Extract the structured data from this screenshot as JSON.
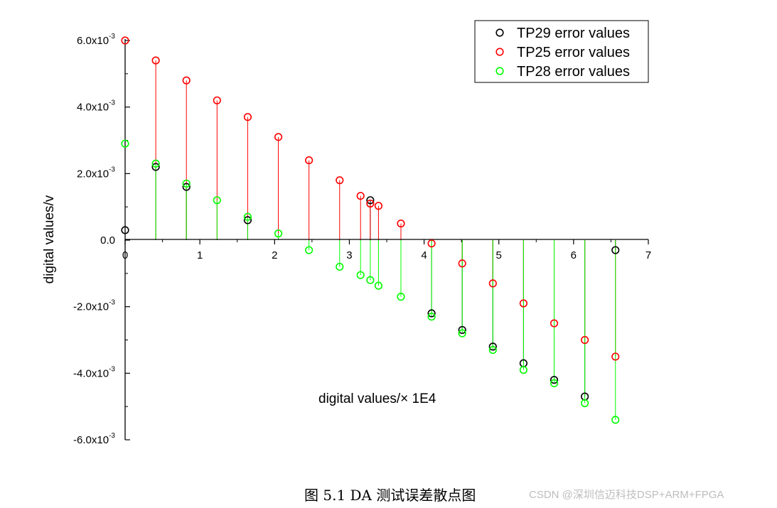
{
  "chart_data": {
    "type": "scatter",
    "xlabel": "digital values/× 1E4",
    "ylabel": "digital values/v",
    "xlim": [
      0,
      7
    ],
    "ylim": [
      -0.006,
      0.006
    ],
    "x_ticks": [
      {
        "value": 0,
        "label": "0"
      },
      {
        "value": 1,
        "label": "1"
      },
      {
        "value": 2,
        "label": "2"
      },
      {
        "value": 3,
        "label": "3"
      },
      {
        "value": 4,
        "label": "4"
      },
      {
        "value": 5,
        "label": "5"
      },
      {
        "value": 6,
        "label": "6"
      },
      {
        "value": 7,
        "label": "7"
      }
    ],
    "y_ticks": [
      {
        "value": 0.006,
        "mantissa": "6.0x10",
        "exp": "-3"
      },
      {
        "value": 0.004,
        "mantissa": "4.0x10",
        "exp": "-3"
      },
      {
        "value": 0.002,
        "mantissa": "2.0x10",
        "exp": "-3"
      },
      {
        "value": 0,
        "mantissa": "0.0",
        "exp": ""
      },
      {
        "value": -0.002,
        "mantissa": "-2.0x10",
        "exp": "-3"
      },
      {
        "value": -0.004,
        "mantissa": "-4.0x10",
        "exp": "-3"
      },
      {
        "value": -0.006,
        "mantissa": "-6.0x10",
        "exp": "-3"
      }
    ],
    "legend_position": "top-right",
    "drop_lines": true,
    "marker": "open-circle",
    "series": [
      {
        "name": "TP29 error values",
        "color": "#000000",
        "points": [
          [
            0,
            0.0003
          ],
          [
            0.41,
            0.0022
          ],
          [
            0.82,
            0.0016
          ],
          [
            1.64,
            0.0006
          ],
          [
            3.28,
            0.0012
          ],
          [
            4.1,
            -0.0022
          ],
          [
            4.51,
            -0.0027
          ],
          [
            4.92,
            -0.0032
          ],
          [
            5.33,
            -0.0037
          ],
          [
            5.74,
            -0.0042
          ],
          [
            6.15,
            -0.0047
          ],
          [
            6.56,
            -0.0003
          ]
        ]
      },
      {
        "name": "TP25 error values",
        "color": "#ff0000",
        "points": [
          [
            0,
            0.006
          ],
          [
            0.41,
            0.0054
          ],
          [
            0.82,
            0.0048
          ],
          [
            1.23,
            0.0042
          ],
          [
            1.64,
            0.0037
          ],
          [
            2.05,
            0.0031
          ],
          [
            2.46,
            0.0024
          ],
          [
            2.87,
            0.0018
          ],
          [
            3.15,
            0.00133
          ],
          [
            3.28,
            0.0011
          ],
          [
            3.39,
            0.00103
          ],
          [
            3.69,
            0.0005
          ],
          [
            4.1,
            -0.0001
          ],
          [
            4.51,
            -0.0007
          ],
          [
            4.92,
            -0.0013
          ],
          [
            5.33,
            -0.0019
          ],
          [
            5.74,
            -0.0025
          ],
          [
            6.15,
            -0.003
          ],
          [
            6.56,
            -0.0035
          ]
        ]
      },
      {
        "name": "TP28 error values",
        "color": "#00ff00",
        "points": [
          [
            0,
            0.0029
          ],
          [
            0.41,
            0.0023
          ],
          [
            0.82,
            0.0017
          ],
          [
            1.23,
            0.0012
          ],
          [
            1.64,
            0.0007
          ],
          [
            2.05,
            0.0002
          ],
          [
            2.46,
            -0.0003
          ],
          [
            2.87,
            -0.0008
          ],
          [
            3.15,
            -0.00105
          ],
          [
            3.28,
            -0.0012
          ],
          [
            3.39,
            -0.00137
          ],
          [
            3.69,
            -0.0017
          ],
          [
            4.1,
            -0.0023
          ],
          [
            4.51,
            -0.0028
          ],
          [
            4.92,
            -0.0033
          ],
          [
            5.33,
            -0.0039
          ],
          [
            5.74,
            -0.0043
          ],
          [
            6.15,
            -0.0049
          ],
          [
            6.56,
            -0.0054
          ]
        ]
      }
    ]
  },
  "caption": "图 5.1 DA 测试误差散点图",
  "watermark": "CSDN @深圳信迈科技DSP+ARM+FPGA"
}
